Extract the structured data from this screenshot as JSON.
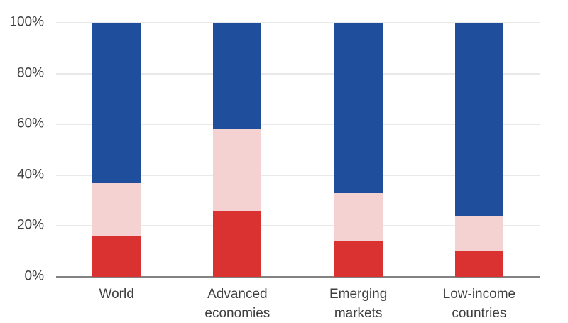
{
  "chart_data": {
    "type": "bar",
    "stacked": true,
    "orientation": "vertical",
    "stack_order": "bottom-to-top",
    "title": "",
    "xlabel": "",
    "ylabel": "",
    "ylim": [
      0,
      100
    ],
    "grid": true,
    "legend": "none",
    "yticks": [
      {
        "value": 0,
        "label": "0%"
      },
      {
        "value": 20,
        "label": "20%"
      },
      {
        "value": 40,
        "label": "40%"
      },
      {
        "value": 60,
        "label": "60%"
      },
      {
        "value": 80,
        "label": "80%"
      },
      {
        "value": 100,
        "label": "100%"
      }
    ],
    "categories": [
      {
        "label": "World",
        "lines": [
          "World"
        ]
      },
      {
        "label": "Advanced economies",
        "lines": [
          "Advanced",
          "economies"
        ]
      },
      {
        "label": "Emerging markets",
        "lines": [
          "Emerging",
          "markets"
        ]
      },
      {
        "label": "Low-income countries",
        "lines": [
          "Low-income",
          "countries"
        ]
      }
    ],
    "series": [
      {
        "name": "red",
        "color": "#d93231",
        "values": [
          16,
          26,
          14,
          10
        ]
      },
      {
        "name": "pink",
        "color": "#f5d2d2",
        "values": [
          21,
          32,
          19,
          14
        ]
      },
      {
        "name": "blue",
        "color": "#1e4e9c",
        "values": [
          63,
          42,
          67,
          76
        ]
      }
    ]
  },
  "colors": {
    "background": "#ffffff",
    "gridline": "#e9e9e9",
    "axis_line": "#828282",
    "text": "#3f3f3f"
  }
}
